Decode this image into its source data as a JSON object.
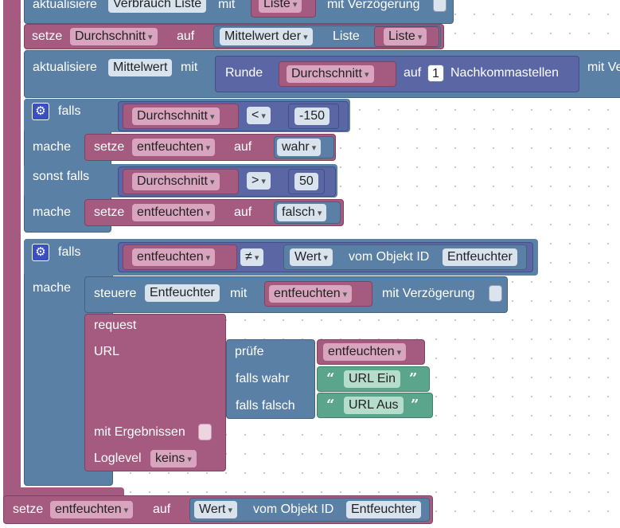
{
  "top": {
    "aktualisiere1": "aktualisiere",
    "verbrauch_liste": "Verbrauch Liste",
    "mit1": "mit",
    "liste1": "Liste",
    "mit_verzoegerung1": "mit Verzögerung"
  },
  "setze_durchschnitt": {
    "setze": "setze",
    "var": "Durchschnitt",
    "auf": "auf",
    "mittelwert_der": "Mittelwert der",
    "liste_label": "Liste",
    "liste_var": "Liste"
  },
  "aktualisiere_mittelwert": {
    "aktualisiere": "aktualisiere",
    "obj": "Mittelwert",
    "mit": "mit",
    "runde": "Runde",
    "var": "Durchschnitt",
    "auf": "auf",
    "num": "1",
    "nachkomma": "Nachkommastellen",
    "mit_ve": "mit Ve"
  },
  "if1": {
    "falls": "falls",
    "var1": "Durchschnitt",
    "op1": "<",
    "val1": "-150",
    "mache1": "mache",
    "setze1": "setze",
    "setvar1": "entfeuchten",
    "auf1": "auf",
    "bool1": "wahr",
    "sonst_falls": "sonst falls",
    "var2": "Durchschnitt",
    "op2": ">",
    "val2": "50",
    "mache2": "mache",
    "setze2": "setze",
    "setvar2": "entfeuchten",
    "auf2": "auf",
    "bool2": "falsch"
  },
  "if2": {
    "falls": "falls",
    "var": "entfeuchten",
    "op": "≠",
    "wert": "Wert",
    "vom_objekt": "vom Objekt ID",
    "obj": "Entfeuchter",
    "mache": "mache",
    "steuere": "steuere",
    "steuere_obj": "Entfeuchter",
    "mit": "mit",
    "steuere_var": "entfeuchten",
    "mit_verzoegerung": "mit Verzögerung",
    "request": "request",
    "url": "URL",
    "pruefe": "prüfe",
    "pruefe_var": "entfeuchten",
    "falls_wahr": "falls wahr",
    "url_ein": "URL Ein",
    "falls_falsch": "falls falsch",
    "url_aus": "URL Aus",
    "mit_ergebnissen": "mit Ergebnissen",
    "loglevel": "Loglevel",
    "loglevel_val": "keins"
  },
  "bottom": {
    "setze": "setze",
    "var": "entfeuchten",
    "auf": "auf",
    "wert": "Wert",
    "vom_objekt": "vom Objekt ID",
    "obj": "Entfeuchter"
  },
  "glyphs": {
    "gear": "⚙",
    "open_quote": "“",
    "close_quote": "”"
  },
  "colors": {
    "procedure_pink": "#a55b80",
    "control_blue": "#5b80a5",
    "math_indigo": "#5b67a5",
    "text_green": "#5ba58c"
  }
}
